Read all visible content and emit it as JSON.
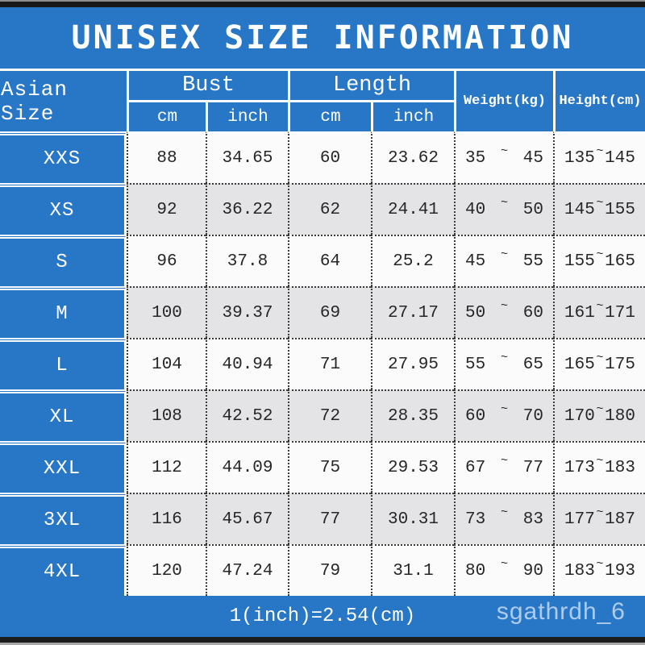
{
  "title": "UNISEX SIZE INFORMATION",
  "header": {
    "corner": "Asian Size",
    "bust_group": "Bust",
    "length_group": "Length",
    "bust_cm_unit": "cm",
    "bust_inch_unit": "inch",
    "length_cm_unit": "cm",
    "length_inch_unit": "inch",
    "weight": "Weight(kg)",
    "height": "Height(cm)"
  },
  "range_separator": "~",
  "rows": [
    {
      "size": "XXS",
      "bust_cm": "88",
      "bust_inch": "34.65",
      "len_cm": "60",
      "len_inch": "23.62",
      "w_min": "35",
      "w_max": "45",
      "h_min": "135",
      "h_max": "145"
    },
    {
      "size": "XS",
      "bust_cm": "92",
      "bust_inch": "36.22",
      "len_cm": "62",
      "len_inch": "24.41",
      "w_min": "40",
      "w_max": "50",
      "h_min": "145",
      "h_max": "155"
    },
    {
      "size": "S",
      "bust_cm": "96",
      "bust_inch": "37.8",
      "len_cm": "64",
      "len_inch": "25.2",
      "w_min": "45",
      "w_max": "55",
      "h_min": "155",
      "h_max": "165"
    },
    {
      "size": "M",
      "bust_cm": "100",
      "bust_inch": "39.37",
      "len_cm": "69",
      "len_inch": "27.17",
      "w_min": "50",
      "w_max": "60",
      "h_min": "161",
      "h_max": "171"
    },
    {
      "size": "L",
      "bust_cm": "104",
      "bust_inch": "40.94",
      "len_cm": "71",
      "len_inch": "27.95",
      "w_min": "55",
      "w_max": "65",
      "h_min": "165",
      "h_max": "175"
    },
    {
      "size": "XL",
      "bust_cm": "108",
      "bust_inch": "42.52",
      "len_cm": "72",
      "len_inch": "28.35",
      "w_min": "60",
      "w_max": "70",
      "h_min": "170",
      "h_max": "180"
    },
    {
      "size": "XXL",
      "bust_cm": "112",
      "bust_inch": "44.09",
      "len_cm": "75",
      "len_inch": "29.53",
      "w_min": "67",
      "w_max": "77",
      "h_min": "173",
      "h_max": "183"
    },
    {
      "size": "3XL",
      "bust_cm": "116",
      "bust_inch": "45.67",
      "len_cm": "77",
      "len_inch": "30.31",
      "w_min": "73",
      "w_max": "83",
      "h_min": "177",
      "h_max": "187"
    },
    {
      "size": "4XL",
      "bust_cm": "120",
      "bust_inch": "47.24",
      "len_cm": "79",
      "len_inch": "31.1",
      "w_min": "80",
      "w_max": "90",
      "h_min": "183",
      "h_max": "193"
    }
  ],
  "footer": {
    "note": "1(inch)=2.54(cm)",
    "watermark": "sgathrdh_6"
  },
  "colors": {
    "accent_blue": "#2877C7",
    "row_gray": "#E4E4E7",
    "row_white": "#FBFBFB",
    "text_dark": "#262626",
    "dotted_border": "#3B3B3B"
  },
  "chart_data": {
    "type": "table",
    "title": "UNISEX SIZE INFORMATION",
    "columns": [
      "Asian Size",
      "Bust cm",
      "Bust inch",
      "Length cm",
      "Length inch",
      "Weight(kg)",
      "Height(cm)"
    ],
    "rows": [
      [
        "XXS",
        88,
        34.65,
        60,
        23.62,
        "35~45",
        "135~145"
      ],
      [
        "XS",
        92,
        36.22,
        62,
        24.41,
        "40~50",
        "145~155"
      ],
      [
        "S",
        96,
        37.8,
        64,
        25.2,
        "45~55",
        "155~165"
      ],
      [
        "M",
        100,
        39.37,
        69,
        27.17,
        "50~60",
        "161~171"
      ],
      [
        "L",
        104,
        40.94,
        71,
        27.95,
        "55~65",
        "165~175"
      ],
      [
        "XL",
        108,
        42.52,
        72,
        28.35,
        "60~70",
        "170~180"
      ],
      [
        "XXL",
        112,
        44.09,
        75,
        29.53,
        "67~77",
        "173~183"
      ],
      [
        "3XL",
        116,
        45.67,
        77,
        30.31,
        "73~83",
        "177~187"
      ],
      [
        "4XL",
        120,
        47.24,
        79,
        31.1,
        "80~90",
        "183~193"
      ]
    ],
    "note": "1(inch)=2.54(cm)"
  }
}
